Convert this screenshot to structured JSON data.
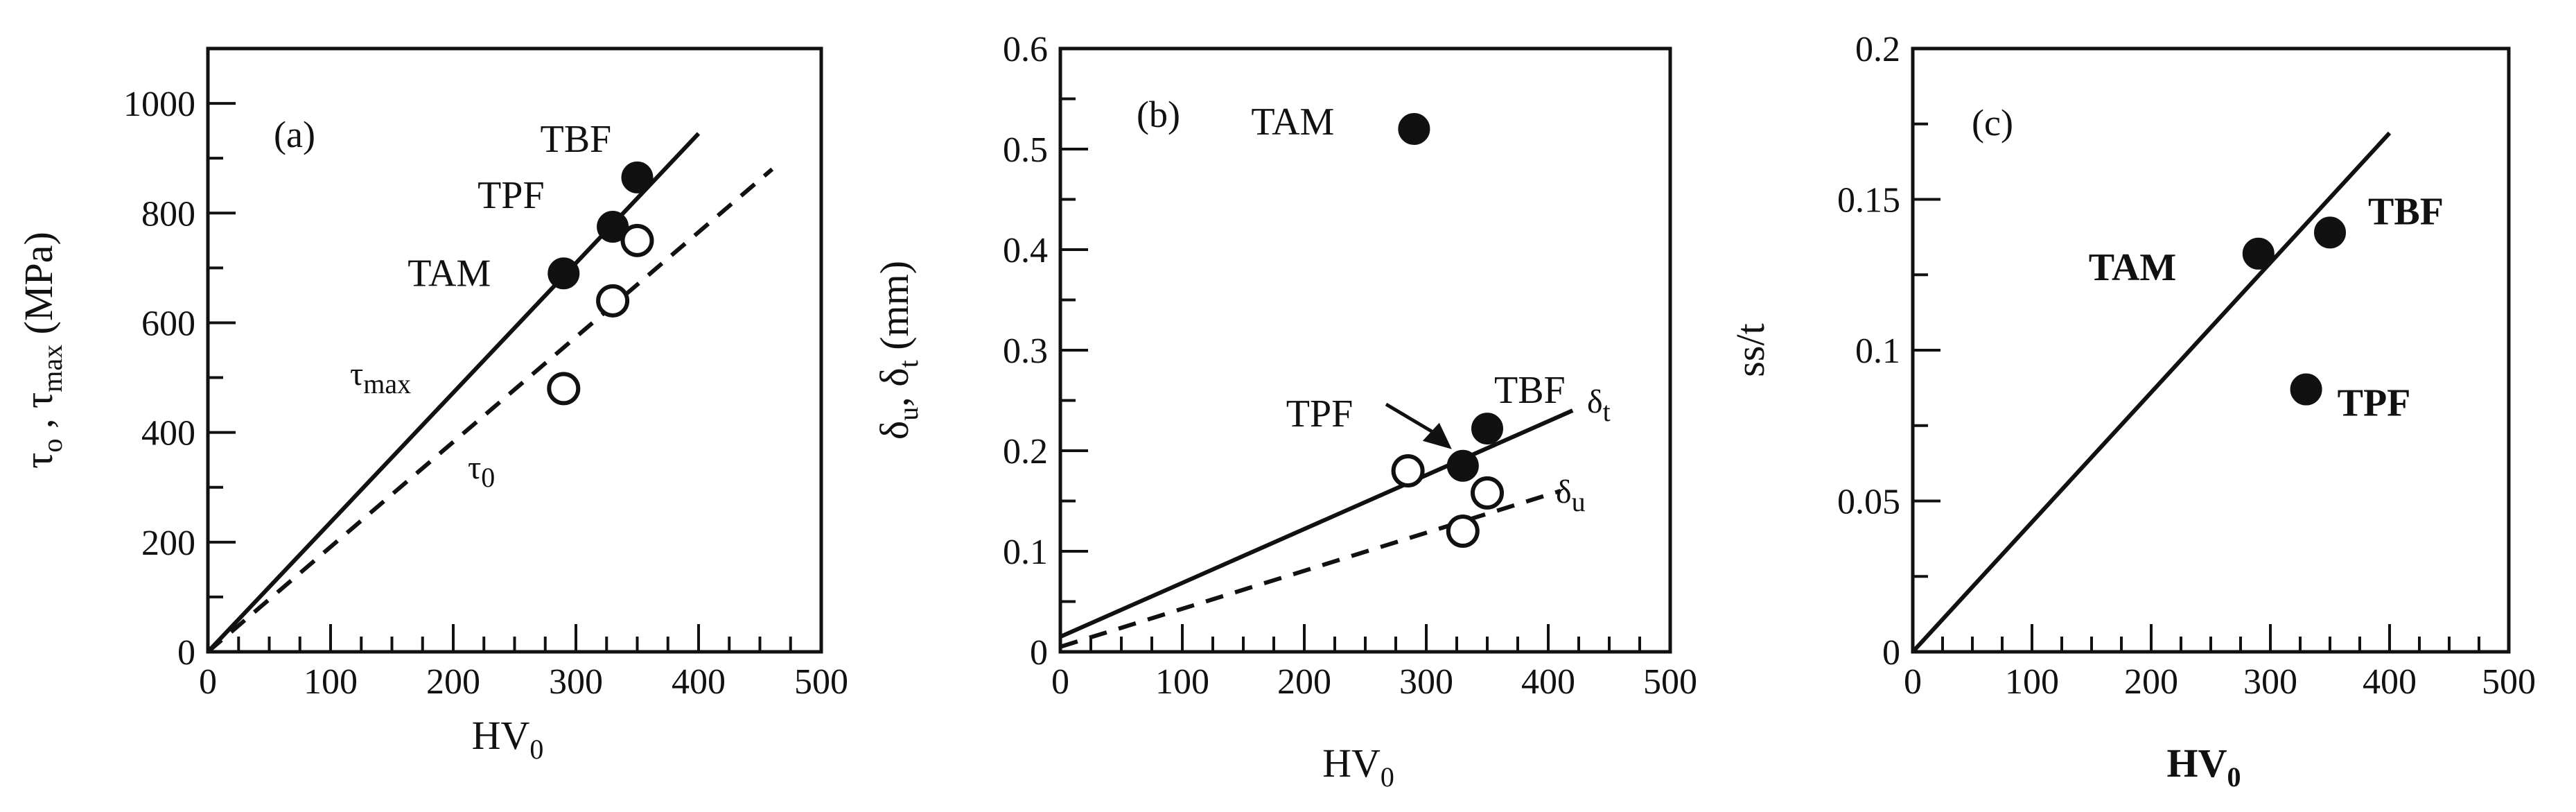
{
  "chart_data": [
    {
      "type": "scatter",
      "panel_label": "(a)",
      "xlabel": "HV",
      "xlabel_sub": "0",
      "ylabel_parts": [
        "τ",
        "o",
        " , τ",
        "max",
        " (MPa)"
      ],
      "xlim": [
        0,
        500
      ],
      "ylim": [
        0,
        1100
      ],
      "xticks": [
        0,
        100,
        200,
        300,
        400,
        500
      ],
      "yticks": [
        0,
        200,
        400,
        600,
        800,
        1000
      ],
      "series": [
        {
          "name": "τmax",
          "marker": "filled-circle",
          "points": [
            {
              "x": 290,
              "y": 690,
              "label": "TAM"
            },
            {
              "x": 330,
              "y": 775,
              "label": "TPF"
            },
            {
              "x": 350,
              "y": 865,
              "label": "TBF"
            }
          ]
        },
        {
          "name": "τ0",
          "marker": "open-circle",
          "points": [
            {
              "x": 290,
              "y": 480
            },
            {
              "x": 330,
              "y": 640
            },
            {
              "x": 350,
              "y": 750
            }
          ]
        }
      ],
      "lines": [
        {
          "name": "τmax",
          "label_main": "τ",
          "label_sub": "max",
          "style": "solid",
          "from": [
            0,
            0
          ],
          "to": [
            400,
            945
          ]
        },
        {
          "name": "τ0",
          "label_main": "τ",
          "label_sub": "0",
          "style": "dashed",
          "from": [
            0,
            0
          ],
          "to": [
            460,
            880
          ]
        }
      ]
    },
    {
      "type": "scatter",
      "panel_label": "(b)",
      "xlabel": "HV",
      "xlabel_sub": "0",
      "ylabel_parts": [
        "δ",
        "u",
        ", δ",
        "t",
        " (mm)"
      ],
      "xlim": [
        0,
        500
      ],
      "ylim": [
        0,
        0.6
      ],
      "xticks": [
        0,
        100,
        200,
        300,
        400,
        500
      ],
      "yticks": [
        0,
        0.1,
        0.2,
        0.3,
        0.4,
        0.5,
        0.6
      ],
      "series": [
        {
          "name": "δt",
          "marker": "filled-circle",
          "points": [
            {
              "x": 290,
              "y": 0.52,
              "label": "TAM"
            },
            {
              "x": 330,
              "y": 0.185,
              "label": "TPF"
            },
            {
              "x": 350,
              "y": 0.222,
              "label": "TBF"
            }
          ]
        },
        {
          "name": "δu",
          "marker": "open-circle",
          "points": [
            {
              "x": 285,
              "y": 0.18
            },
            {
              "x": 330,
              "y": 0.12
            },
            {
              "x": 350,
              "y": 0.158
            }
          ]
        }
      ],
      "lines": [
        {
          "name": "δt",
          "label_main": "δ",
          "label_sub": "t",
          "style": "solid",
          "from": [
            0,
            0.015
          ],
          "to": [
            420,
            0.24
          ]
        },
        {
          "name": "δu",
          "label_main": "δ",
          "label_sub": "u",
          "style": "dashed",
          "from": [
            0,
            0.005
          ],
          "to": [
            410,
            0.16
          ]
        }
      ]
    },
    {
      "type": "scatter",
      "panel_label": "(c)",
      "xlabel": "HV",
      "xlabel_sub": "0",
      "ylabel": "ss/t",
      "xlim": [
        0,
        500
      ],
      "ylim": [
        0,
        0.2
      ],
      "xticks": [
        0,
        100,
        200,
        300,
        400,
        500
      ],
      "yticks": [
        0,
        0.05,
        0.1,
        0.15,
        0.2
      ],
      "ytick_labels": [
        "0",
        "0.05",
        "0.1",
        "0.15",
        "0.2"
      ],
      "series": [
        {
          "name": "ss/t",
          "marker": "filled-circle",
          "points": [
            {
              "x": 290,
              "y": 0.132,
              "label": "TAM"
            },
            {
              "x": 350,
              "y": 0.139,
              "label": "TBF"
            },
            {
              "x": 330,
              "y": 0.087,
              "label": "TPF"
            }
          ]
        }
      ],
      "lines": [
        {
          "name": "fit",
          "style": "solid",
          "from": [
            0,
            0
          ],
          "to": [
            400,
            0.172
          ]
        }
      ]
    }
  ]
}
